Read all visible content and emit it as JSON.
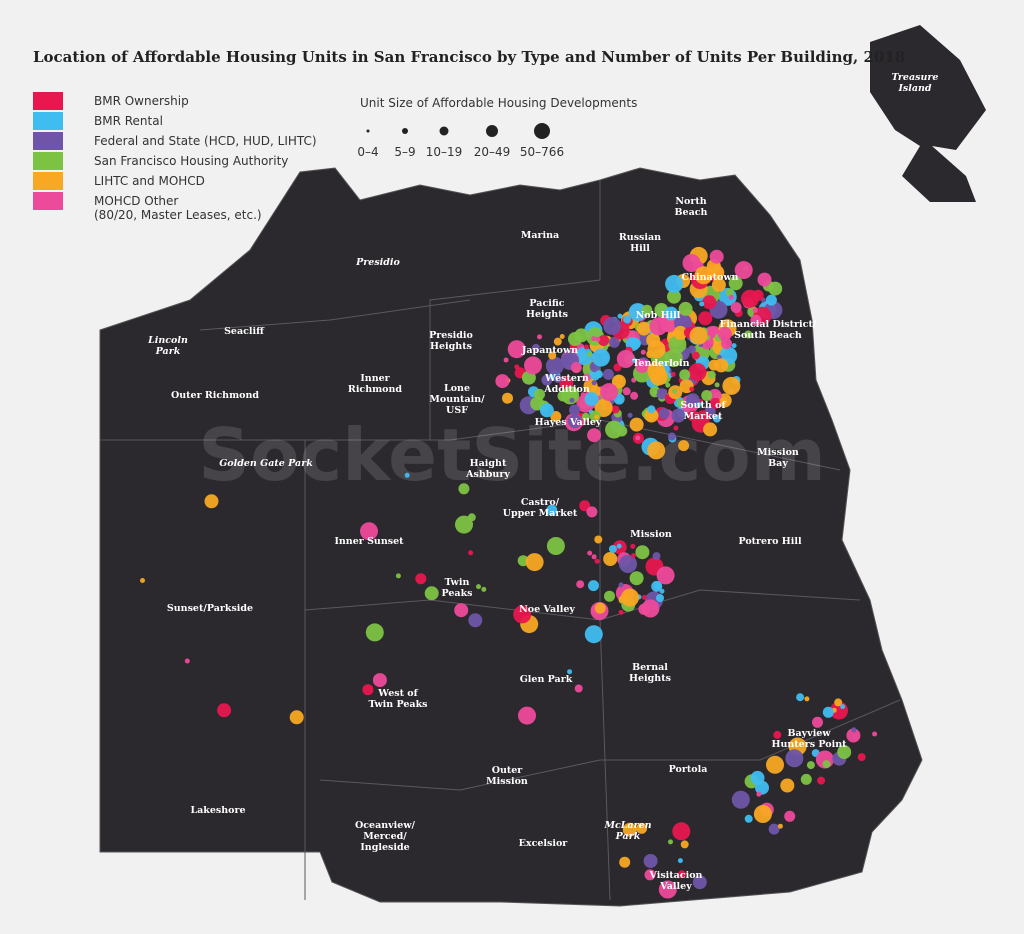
{
  "title": "Location of Affordable Housing Units in San Francisco by Type and Number of Units Per Building, 2018",
  "legend": {
    "items": [
      {
        "label": "BMR Ownership",
        "color": "#e8174f"
      },
      {
        "label": "BMR Rental",
        "color": "#3fbdf0"
      },
      {
        "label": "Federal and State (HCD, HUD, LIHTC)",
        "color": "#6e55a8"
      },
      {
        "label": "San Francisco Housing Authority",
        "color": "#7cc243"
      },
      {
        "label": "LIHTC and MOHCD",
        "color": "#f8a823"
      },
      {
        "label": "MOHCD Other",
        "sublabel": "(80/20, Master Leases, etc.)",
        "color": "#ee4a9b"
      }
    ]
  },
  "size_legend": {
    "title": "Unit Size of Affordable Housing Developments",
    "labels": [
      "0–4",
      "5–9",
      "10–19",
      "20–49",
      "50–766"
    ]
  },
  "watermark": "SocketSite.com",
  "neighborhoods": [
    {
      "lines": [
        "Treasure",
        "Island"
      ],
      "italic": true
    },
    {
      "lines": [
        "North",
        "Beach"
      ]
    },
    {
      "lines": [
        "Russian",
        "Hill"
      ]
    },
    {
      "lines": [
        "Marina"
      ]
    },
    {
      "lines": [
        "Presidio"
      ],
      "italic": true
    },
    {
      "lines": [
        "Chinatown"
      ]
    },
    {
      "lines": [
        "Pacific",
        "Heights"
      ]
    },
    {
      "lines": [
        "Nob Hill"
      ]
    },
    {
      "lines": [
        "Financial District/",
        "South Beach"
      ]
    },
    {
      "lines": [
        "Seacliff"
      ]
    },
    {
      "lines": [
        "Presidio",
        "Heights"
      ]
    },
    {
      "lines": [
        "Lincoln",
        "Park"
      ],
      "italic": true
    },
    {
      "lines": [
        "Japantown"
      ]
    },
    {
      "lines": [
        "Tenderloin"
      ]
    },
    {
      "lines": [
        "Inner",
        "Richmond"
      ]
    },
    {
      "lines": [
        "Western",
        "Addition"
      ]
    },
    {
      "lines": [
        "Lone",
        "Mountain/",
        "USF"
      ]
    },
    {
      "lines": [
        "Outer Richmond"
      ]
    },
    {
      "lines": [
        "South of",
        "Market"
      ]
    },
    {
      "lines": [
        "Hayes Valley"
      ]
    },
    {
      "lines": [
        "Mission",
        "Bay"
      ]
    },
    {
      "lines": [
        "Golden Gate Park"
      ],
      "italic": true
    },
    {
      "lines": [
        "Haight",
        "Ashbury"
      ]
    },
    {
      "lines": [
        "Castro/",
        "Upper Market"
      ]
    },
    {
      "lines": [
        "Mission"
      ]
    },
    {
      "lines": [
        "Inner Sunset"
      ]
    },
    {
      "lines": [
        "Potrero Hill"
      ]
    },
    {
      "lines": [
        "Twin",
        "Peaks"
      ]
    },
    {
      "lines": [
        "Noe Valley"
      ]
    },
    {
      "lines": [
        "Sunset/Parkside"
      ]
    },
    {
      "lines": [
        "Glen Park"
      ]
    },
    {
      "lines": [
        "Bernal",
        "Heights"
      ]
    },
    {
      "lines": [
        "West of",
        "Twin Peaks"
      ]
    },
    {
      "lines": [
        "Bayview",
        "Hunters Point"
      ]
    },
    {
      "lines": [
        "Portola"
      ]
    },
    {
      "lines": [
        "Outer",
        "Mission"
      ]
    },
    {
      "lines": [
        "Lakeshore"
      ]
    },
    {
      "lines": [
        "McLaren",
        "Park"
      ],
      "italic": true
    },
    {
      "lines": [
        "Oceanview/",
        "Merced/",
        "Ingleside"
      ]
    },
    {
      "lines": [
        "Excelsior"
      ]
    },
    {
      "lines": [
        "Visitacion",
        "Valley"
      ]
    }
  ]
}
